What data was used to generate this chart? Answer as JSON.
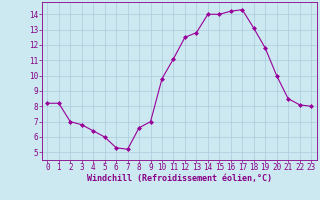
{
  "x": [
    0,
    1,
    2,
    3,
    4,
    5,
    6,
    7,
    8,
    9,
    10,
    11,
    12,
    13,
    14,
    15,
    16,
    17,
    18,
    19,
    20,
    21,
    22,
    23
  ],
  "y": [
    8.2,
    8.2,
    7.0,
    6.8,
    6.4,
    6.0,
    5.3,
    5.2,
    6.6,
    7.0,
    9.8,
    11.1,
    12.5,
    12.8,
    14.0,
    14.0,
    14.2,
    14.3,
    13.1,
    11.8,
    10.0,
    8.5,
    8.1,
    8.0
  ],
  "line_color": "#990099",
  "marker": "D",
  "marker_size": 2.0,
  "bg_color": "#cce8f0",
  "grid_color": "#aaccdd",
  "xlabel": "Windchill (Refroidissement éolien,°C)",
  "xlim": [
    -0.5,
    23.5
  ],
  "ylim": [
    4.5,
    14.8
  ],
  "yticks": [
    5,
    6,
    7,
    8,
    9,
    10,
    11,
    12,
    13,
    14
  ],
  "xticks": [
    0,
    1,
    2,
    3,
    4,
    5,
    6,
    7,
    8,
    9,
    10,
    11,
    12,
    13,
    14,
    15,
    16,
    17,
    18,
    19,
    20,
    21,
    22,
    23
  ],
  "tick_color": "#880088",
  "label_color": "#880088",
  "label_fontsize": 6.0,
  "tick_fontsize": 5.5,
  "line_width": 0.8
}
